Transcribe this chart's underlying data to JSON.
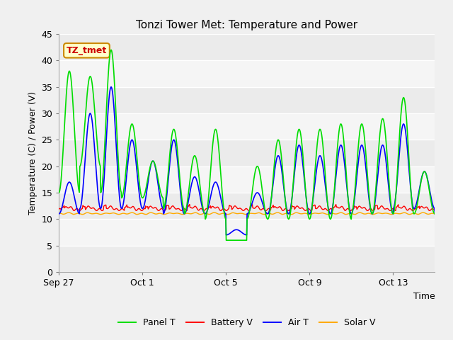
{
  "title": "Tonzi Tower Met: Temperature and Power",
  "xlabel": "Time",
  "ylabel": "Temperature (C) / Power (V)",
  "ylim": [
    0,
    45
  ],
  "yticks": [
    0,
    5,
    10,
    15,
    20,
    25,
    30,
    35,
    40,
    45
  ],
  "xtick_labels": [
    "Sep 27",
    "Oct 1",
    "Oct 5",
    "Oct 9",
    "Oct 13"
  ],
  "xtick_positions": [
    0,
    4,
    8,
    12,
    16
  ],
  "n_days": 18,
  "annotation_text": "TZ_tmet",
  "legend_labels": [
    "Panel T",
    "Battery V",
    "Air T",
    "Solar V"
  ],
  "legend_colors": [
    "#00dd00",
    "#ff0000",
    "#0000ff",
    "#ffaa00"
  ],
  "panel_color": "#00dd00",
  "battery_color": "#ff0000",
  "air_color": "#0000ff",
  "solar_color": "#ffaa00",
  "bg_color": "#f0f0f0",
  "plot_bg_light": "#f8f8f8",
  "plot_bg_dark": "#e8e8e8",
  "stripe_light": "#f0f0f0",
  "stripe_dark": "#e0e0e0",
  "annotation_facecolor": "#ffffcc",
  "annotation_edgecolor": "#cc8800",
  "annotation_textcolor": "#cc0000"
}
